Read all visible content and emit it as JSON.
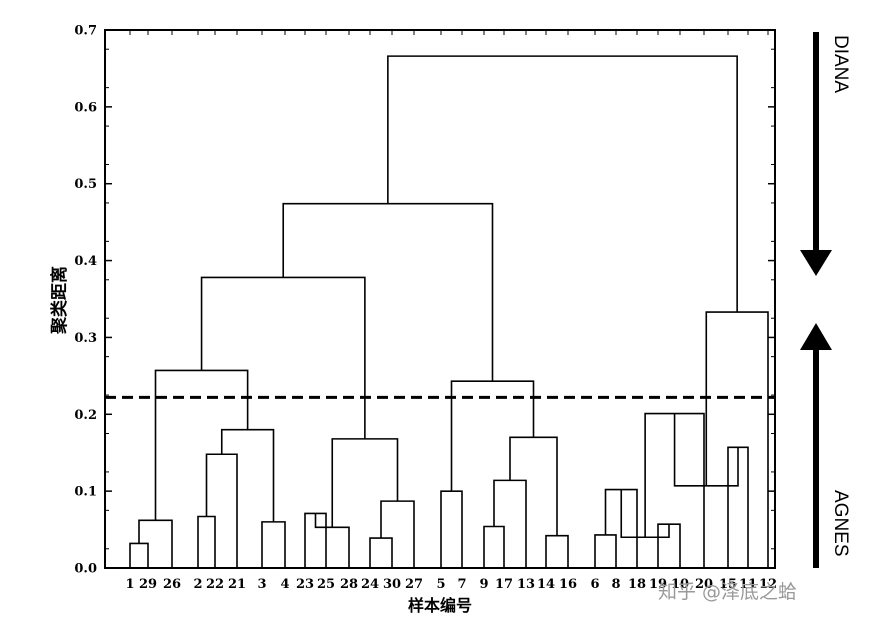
{
  "chart_data": {
    "type": "dendrogram",
    "xlabel": "样本编号",
    "ylabel": "聚类距离",
    "ylim": [
      0,
      0.7
    ],
    "yticks": [
      "0.0",
      "0.1",
      "0.2",
      "0.3",
      "0.4",
      "0.5",
      "0.6",
      "0.7"
    ],
    "leaves": [
      "1",
      "29",
      "26",
      "2",
      "22",
      "21",
      "3",
      "4",
      "23",
      "25",
      "28",
      "24",
      "30",
      "27",
      "5",
      "7",
      "9",
      "17",
      "13",
      "14",
      "16",
      "6",
      "8",
      "18",
      "19",
      "10",
      "20",
      "15",
      "11",
      "12"
    ],
    "leaf_labels_display": [
      "1",
      "29",
      "26",
      "2",
      "22",
      "21",
      "3",
      "4",
      "23",
      "25",
      "28",
      "24",
      "30",
      "27",
      "5",
      "7",
      "9",
      "17",
      "13",
      "14",
      "16",
      "6",
      "8",
      "18",
      "19",
      "10",
      "20",
      "15",
      "11",
      "12"
    ],
    "merges": [
      {
        "a": "L0",
        "b": "L1",
        "height": 0.032
      },
      {
        "a": "M0",
        "b": "L2",
        "height": 0.062
      },
      {
        "a": "L3",
        "b": "L4",
        "height": 0.067
      },
      {
        "a": "M2",
        "b": "L5",
        "height": 0.148
      },
      {
        "a": "L6",
        "b": "L7",
        "height": 0.06
      },
      {
        "a": "M3",
        "b": "M4",
        "height": 0.18
      },
      {
        "a": "M1",
        "b": "M5",
        "height": 0.257
      },
      {
        "a": "L8",
        "b": "L9",
        "height": 0.071
      },
      {
        "a": "M7",
        "b": "L10",
        "height": 0.053
      },
      {
        "a": "L11",
        "b": "L12",
        "height": 0.039
      },
      {
        "a": "M9",
        "b": "L13",
        "height": 0.087
      },
      {
        "a": "M8",
        "b": "M10",
        "height": 0.168
      },
      {
        "a": "M6",
        "b": "M11",
        "height": 0.378
      },
      {
        "a": "L14",
        "b": "L15",
        "height": 0.1
      },
      {
        "a": "L16",
        "b": "L17",
        "height": 0.054
      },
      {
        "a": "M14",
        "b": "L18",
        "height": 0.114
      },
      {
        "a": "L19",
        "b": "L20",
        "height": 0.042
      },
      {
        "a": "M15",
        "b": "M16",
        "height": 0.17
      },
      {
        "a": "M13",
        "b": "M17",
        "height": 0.243
      },
      {
        "a": "M12",
        "b": "M18",
        "height": 0.474
      },
      {
        "a": "L21",
        "b": "L22",
        "height": 0.043
      },
      {
        "a": "M20",
        "b": "L23",
        "height": 0.102
      },
      {
        "a": "L24",
        "b": "L25",
        "height": 0.057
      },
      {
        "a": "M21",
        "b": "M22",
        "height": 0.04
      },
      {
        "a": "M23",
        "b": "L26",
        "height": 0.201
      },
      {
        "a": "L27",
        "b": "L28",
        "height": 0.157
      },
      {
        "a": "M24",
        "b": "M25",
        "height": 0.107
      },
      {
        "a": "M26",
        "b": "L29",
        "height": 0.333
      },
      {
        "a": "M19",
        "b": "M27",
        "height": 0.666
      }
    ],
    "cut_line": 0.222,
    "arrows": [
      {
        "label": "DIANA",
        "direction": "down"
      },
      {
        "label": "AGNES",
        "direction": "up"
      }
    ]
  },
  "watermark": "知乎 @泽底之蛤",
  "colors": {
    "ink": "#000000",
    "watermark": "#9a9a9a"
  }
}
